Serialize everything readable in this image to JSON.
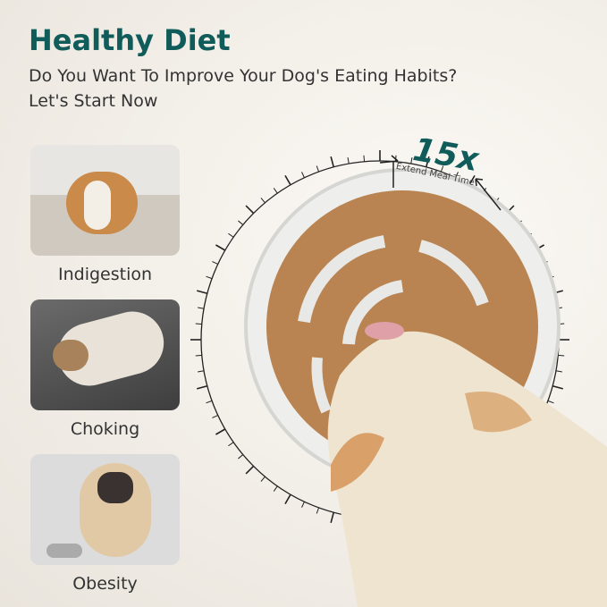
{
  "header": {
    "title": "Healthy Diet",
    "subtitle_1": "Do You Want To Improve Your Dog's Eating Habits?",
    "subtitle_2": "Let's Start Now"
  },
  "problems": [
    {
      "label": "Indigestion",
      "image": "corgi lying on floor"
    },
    {
      "label": "Choking",
      "image": "puppy lying on asphalt"
    },
    {
      "label": "Obesity",
      "image": "pug sitting beside food bowl"
    }
  ],
  "badge": {
    "multiplier": "15x",
    "caption": "Extend Meal Time"
  },
  "colors": {
    "accent": "#0f5c5a",
    "kibble": "#b07a4a",
    "bowl": "#d9d9d6"
  }
}
